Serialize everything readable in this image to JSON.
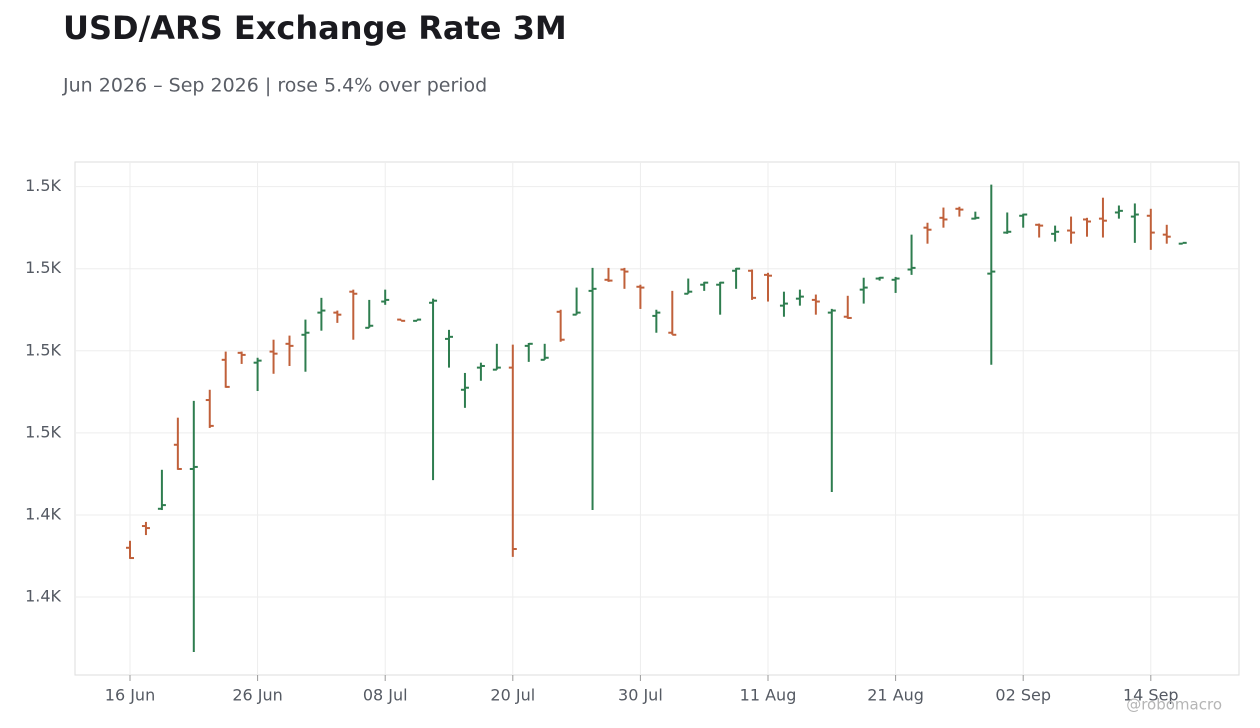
{
  "chart_data": {
    "type": "ohlc",
    "title": "USD/ARS Exchange Rate 3M",
    "subtitle": "Jun 2026 – Sep 2026 | rose 5.4% over period",
    "watermark": "@robomacro",
    "up_color": "#2e7d4f",
    "down_color": "#c0603a",
    "grid": true,
    "categories": [
      "16 Jun",
      null,
      null,
      null,
      null,
      null,
      null,
      null,
      "26 Jun",
      null,
      null,
      null,
      null,
      null,
      null,
      null,
      "08 Jul",
      null,
      null,
      null,
      null,
      null,
      null,
      null,
      "20 Jul",
      null,
      null,
      null,
      null,
      null,
      null,
      null,
      "30 Jul",
      null,
      null,
      null,
      null,
      null,
      null,
      null,
      "11 Aug",
      null,
      null,
      null,
      null,
      null,
      null,
      null,
      "21 Aug",
      null,
      null,
      null,
      null,
      null,
      null,
      null,
      "02 Sep",
      null,
      null,
      null,
      null,
      null,
      null,
      null,
      "14 Sep",
      null,
      null
    ],
    "open": [
      1432.0,
      1437.3,
      1441.5,
      1457.1,
      1451.2,
      1468.0,
      1477.8,
      1479.5,
      1477.1,
      1479.8,
      1481.7,
      1483.9,
      1489.3,
      1489.3,
      1494.4,
      1485.6,
      1492.0,
      1487.6,
      1487.3,
      1491.7,
      1482.9,
      1470.5,
      1475.9,
      1475.4,
      1475.9,
      1481.2,
      1477.8,
      1489.5,
      1488.8,
      1494.6,
      1497.3,
      1499.8,
      1495.6,
      1488.5,
      1484.4,
      1493.9,
      1496.1,
      1496.1,
      1499.5,
      1499.5,
      1498.5,
      1491.0,
      1492.7,
      1492.4,
      1489.3,
      1488.3,
      1494.9,
      1497.6,
      1497.3,
      1499.8,
      1510.0,
      1512.4,
      1514.6,
      1512.2,
      1498.8,
      1508.8,
      1512.9,
      1510.7,
      1508.5,
      1509.3,
      1512.0,
      1512.2,
      1513.7,
      1512.7,
      1512.9,
      1508.3,
      1506.1
    ],
    "high": [
      1433.7,
      1438.3,
      1451.0,
      1463.7,
      1467.8,
      1470.5,
      1479.8,
      1479.8,
      1478.3,
      1482.7,
      1483.7,
      1487.6,
      1492.9,
      1489.8,
      1494.9,
      1492.4,
      1494.9,
      1487.6,
      1487.6,
      1492.7,
      1485.1,
      1474.6,
      1477.1,
      1481.7,
      1481.5,
      1481.9,
      1481.7,
      1490.0,
      1495.4,
      1500.2,
      1500.2,
      1500.2,
      1496.1,
      1490.0,
      1494.6,
      1497.6,
      1496.8,
      1496.8,
      1500.2,
      1499.8,
      1499.0,
      1494.4,
      1494.9,
      1493.7,
      1490.2,
      1493.4,
      1497.8,
      1498.0,
      1498.0,
      1508.3,
      1511.2,
      1514.9,
      1515.1,
      1513.9,
      1520.5,
      1513.7,
      1513.4,
      1511.0,
      1510.5,
      1512.7,
      1512.4,
      1517.3,
      1515.4,
      1515.9,
      1514.6,
      1510.7,
      1506.3
    ],
    "low": [
      1429.3,
      1435.1,
      1441.2,
      1451.0,
      1406.6,
      1461.2,
      1471.0,
      1476.8,
      1470.2,
      1474.4,
      1476.3,
      1474.9,
      1484.9,
      1486.8,
      1482.7,
      1485.6,
      1491.2,
      1487.3,
      1487.3,
      1448.5,
      1475.9,
      1466.1,
      1472.7,
      1475.4,
      1429.8,
      1477.3,
      1477.8,
      1482.2,
      1488.8,
      1441.2,
      1496.8,
      1495.1,
      1490.2,
      1484.4,
      1483.9,
      1493.9,
      1494.6,
      1488.8,
      1495.1,
      1492.4,
      1492.0,
      1488.3,
      1491.0,
      1488.8,
      1445.6,
      1487.8,
      1491.5,
      1497.1,
      1494.1,
      1498.5,
      1506.1,
      1510.0,
      1512.7,
      1512.0,
      1476.6,
      1508.5,
      1510.0,
      1507.6,
      1506.6,
      1506.1,
      1507.8,
      1507.6,
      1512.2,
      1506.3,
      1504.6,
      1506.1,
      1506.1
    ],
    "close": [
      1429.5,
      1436.8,
      1442.4,
      1451.2,
      1451.7,
      1461.7,
      1471.2,
      1479.0,
      1477.6,
      1479.3,
      1481.2,
      1484.4,
      1489.8,
      1488.8,
      1493.9,
      1486.1,
      1492.4,
      1487.3,
      1487.6,
      1492.2,
      1483.4,
      1471.0,
      1476.3,
      1475.9,
      1431.7,
      1481.7,
      1478.3,
      1482.7,
      1489.3,
      1495.1,
      1497.1,
      1499.3,
      1495.4,
      1489.3,
      1483.9,
      1494.4,
      1496.6,
      1496.6,
      1500.0,
      1492.9,
      1498.3,
      1491.5,
      1493.2,
      1492.0,
      1489.8,
      1488.0,
      1495.4,
      1497.8,
      1497.6,
      1500.2,
      1509.5,
      1512.0,
      1514.4,
      1512.4,
      1499.3,
      1509.0,
      1513.2,
      1510.5,
      1509.0,
      1508.8,
      1511.5,
      1511.7,
      1514.1,
      1513.2,
      1508.8,
      1507.8,
      1506.3
    ],
    "ylim": [
      1401,
      1526
    ],
    "yticks": [
      {
        "value": 1520,
        "label": "1.5K"
      },
      {
        "value": 1500,
        "label": "1.5K"
      },
      {
        "value": 1480,
        "label": "1.5K"
      },
      {
        "value": 1460,
        "label": "1.5K"
      },
      {
        "value": 1440,
        "label": "1.4K"
      },
      {
        "value": 1420,
        "label": "1.4K"
      }
    ]
  }
}
